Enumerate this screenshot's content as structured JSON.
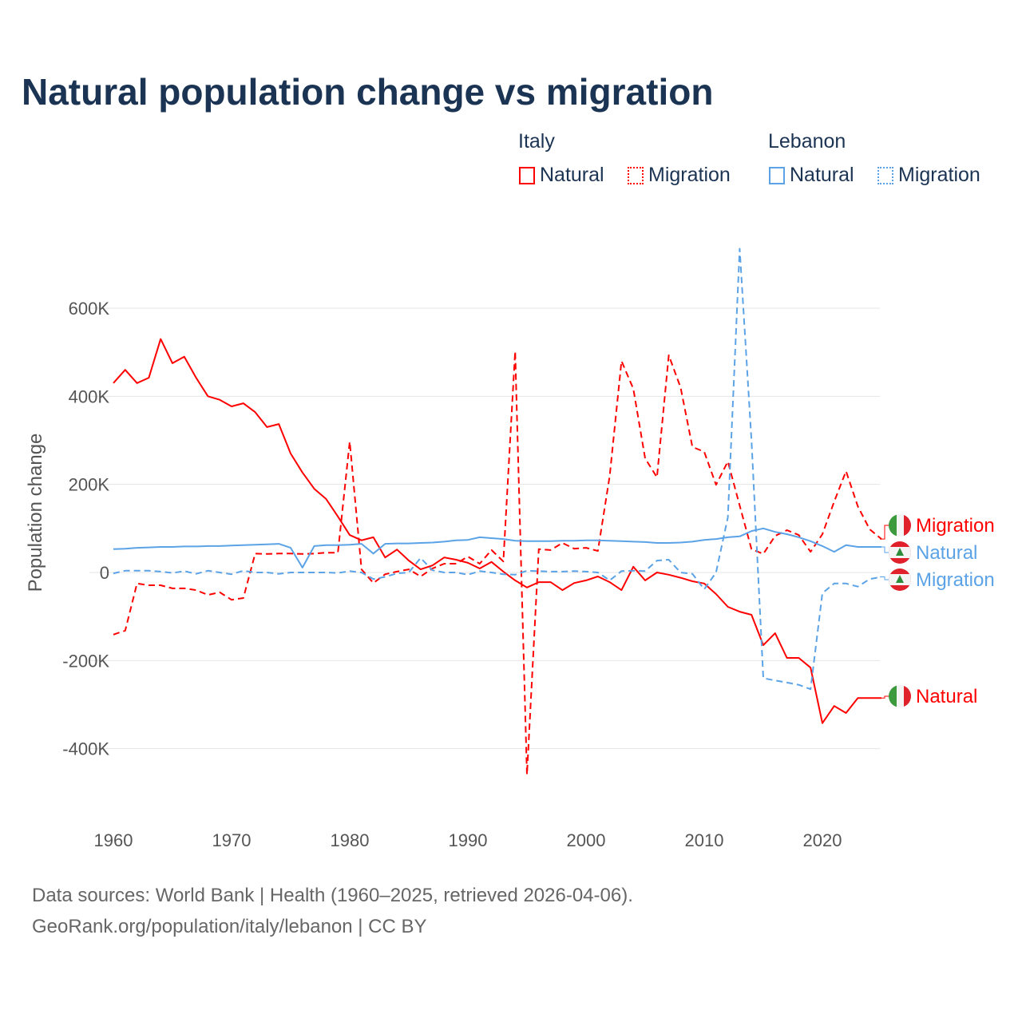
{
  "title": "Natural population change vs migration",
  "legend": {
    "groups": [
      {
        "name": "Italy",
        "color": "#ff0000",
        "items": [
          "Natural",
          "Migration"
        ]
      },
      {
        "name": "Lebanon",
        "color": "#5ba3e6",
        "items": [
          "Natural",
          "Migration"
        ]
      }
    ]
  },
  "footer": {
    "line1": "Data sources: World Bank | Health (1960–2025, retrieved 2026-04-06).",
    "line2": "GeoRank.org/population/italy/lebanon | CC BY"
  },
  "chart_data": {
    "type": "line",
    "title": "Natural population change vs migration",
    "xlabel": "",
    "ylabel": "Population change",
    "xlim": [
      1960,
      2025
    ],
    "ylim": [
      -460000,
      740000
    ],
    "yticks": [
      -400000,
      -200000,
      0,
      200000,
      400000,
      600000
    ],
    "ytick_labels": [
      "-400K",
      "-200K",
      "0",
      "200K",
      "400K",
      "600K"
    ],
    "xticks": [
      1960,
      1970,
      1980,
      1990,
      2000,
      2010,
      2020
    ],
    "xtick_labels": [
      "1960",
      "1970",
      "1980",
      "1990",
      "2000",
      "2010",
      "2020"
    ],
    "grid": true,
    "legend_position": "top-right",
    "x_start": 1960,
    "series": [
      {
        "name": "Italy Natural",
        "label": "Natural",
        "country": "Italy",
        "color": "#ff0000",
        "dash": false,
        "values": [
          430,
          460,
          430,
          442,
          530,
          475,
          490,
          442,
          400,
          392,
          377,
          384,
          364,
          330,
          337,
          270,
          227,
          190,
          167,
          127,
          85,
          73,
          80,
          34,
          52,
          27,
          7,
          16,
          34,
          29,
          22,
          9,
          24,
          2,
          -18,
          -34,
          -22,
          -22,
          -40,
          -24,
          -18,
          -9,
          -22,
          -40,
          13,
          -18,
          0,
          -5,
          -12,
          -20,
          -25,
          -49,
          -78,
          -89,
          -96,
          -165,
          -138,
          -194,
          -194,
          -216,
          -342,
          -303,
          -319,
          -285,
          -285,
          -285
        ]
      },
      {
        "name": "Italy Migration",
        "label": "Migration",
        "country": "Italy",
        "color": "#ff0000",
        "dash": true,
        "values": [
          -141,
          -132,
          -25,
          -29,
          -29,
          -36,
          -36,
          -40,
          -51,
          -45,
          -62,
          -58,
          43,
          42,
          43,
          43,
          42,
          43,
          45,
          45,
          297,
          7,
          -24,
          -4,
          2,
          7,
          -9,
          9,
          20,
          20,
          36,
          20,
          51,
          25,
          502,
          -459,
          53,
          51,
          67,
          54,
          56,
          49,
          219,
          480,
          417,
          259,
          216,
          493,
          420,
          285,
          274,
          199,
          252,
          152,
          53,
          42,
          83,
          96,
          85,
          47,
          87,
          161,
          230,
          150,
          98,
          76
        ]
      },
      {
        "name": "Lebanon Natural",
        "label": "Natural",
        "country": "Lebanon",
        "color": "#5ba3e6",
        "dash": false,
        "values": [
          53,
          54,
          56,
          57,
          58,
          58,
          59,
          59,
          60,
          60,
          61,
          62,
          63,
          64,
          65,
          56,
          11,
          60,
          62,
          62,
          63,
          65,
          43,
          65,
          66,
          66,
          67,
          68,
          70,
          73,
          74,
          80,
          78,
          76,
          72,
          71,
          71,
          71,
          72,
          72,
          73,
          73,
          72,
          71,
          70,
          69,
          67,
          67,
          68,
          70,
          74,
          76,
          80,
          82,
          94,
          100,
          92,
          87,
          80,
          71,
          60,
          47,
          62,
          58,
          58,
          58
        ]
      },
      {
        "name": "Lebanon Migration",
        "label": "Migration",
        "country": "Lebanon",
        "color": "#5ba3e6",
        "dash": true,
        "values": [
          -2,
          4,
          4,
          4,
          2,
          -1,
          3,
          -3,
          4,
          0,
          -4,
          4,
          0,
          0,
          -3,
          0,
          0,
          0,
          0,
          -1,
          3,
          0,
          -15,
          -10,
          -2,
          0,
          33,
          5,
          0,
          0,
          -5,
          3,
          0,
          -4,
          -5,
          4,
          3,
          2,
          2,
          3,
          2,
          0,
          -18,
          3,
          4,
          3,
          27,
          29,
          0,
          -3,
          -38,
          0,
          125,
          735,
          300,
          -240,
          -245,
          -250,
          -255,
          -265,
          -47,
          -25,
          -25,
          -32,
          -15,
          -10
        ]
      }
    ],
    "value_unit": "thousands",
    "end_labels": [
      "Migration",
      "Natural",
      "Migration",
      "Natural"
    ]
  }
}
